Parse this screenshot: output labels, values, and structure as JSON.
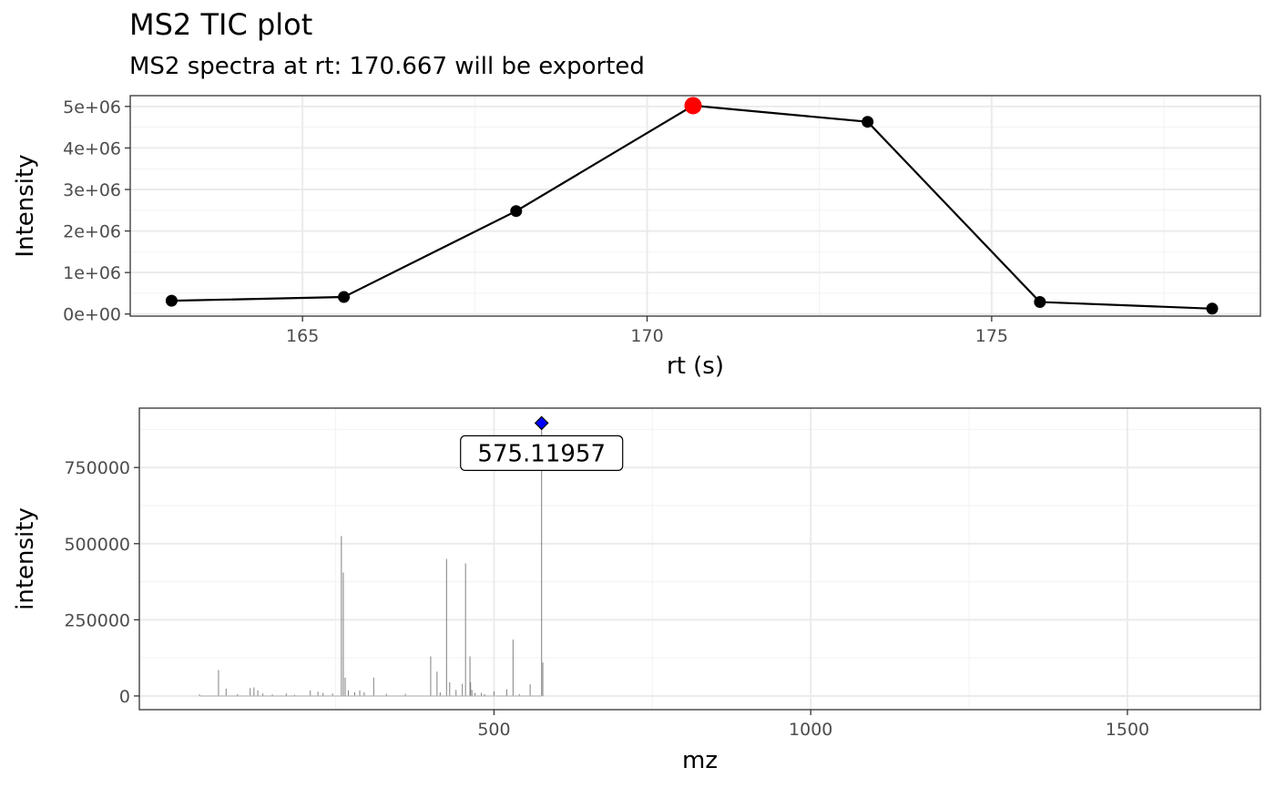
{
  "title": "MS2 TIC plot",
  "subtitle": "MS2 spectra at rt: 170.667 will be exported",
  "chart_data": [
    {
      "type": "line",
      "xlabel": "rt (s)",
      "ylabel": "Intensity",
      "xlim": [
        162.5,
        178.9
      ],
      "ylim": [
        -50000,
        5260000
      ],
      "xticks": [
        165,
        170,
        175
      ],
      "xtick_labels": [
        "165",
        "170",
        "175"
      ],
      "yticks": [
        0,
        1000000,
        2000000,
        3000000,
        4000000,
        5000000
      ],
      "ytick_labels": [
        "0e+00",
        "1e+06",
        "2e+06",
        "3e+06",
        "4e+06",
        "5e+06"
      ],
      "grid": true,
      "series": [
        {
          "x": [
            163.1,
            165.6,
            168.1,
            170.667,
            173.2,
            175.7,
            178.2
          ],
          "y": [
            320000,
            410000,
            2480000,
            5020000,
            4630000,
            290000,
            130000
          ],
          "color": "#000000"
        }
      ],
      "highlight": {
        "x": 170.667,
        "y": 5020000,
        "color": "#ff0000"
      }
    },
    {
      "type": "bar",
      "xlabel": "mz",
      "ylabel": "intensity",
      "xlim": [
        -60,
        1710
      ],
      "ylim": [
        -45000,
        945000
      ],
      "xticks": [
        500,
        1000,
        1500
      ],
      "xtick_labels": [
        "500",
        "1000",
        "1500"
      ],
      "yticks": [
        0,
        250000,
        500000,
        750000
      ],
      "ytick_labels": [
        "0",
        "250000",
        "500000",
        "750000"
      ],
      "grid": true,
      "bar_color": "#808080",
      "peaks": {
        "mz": [
          35,
          65,
          77,
          95,
          115,
          121,
          127,
          135,
          150,
          172,
          185,
          210,
          222,
          230,
          245,
          259,
          262,
          265,
          270,
          280,
          288,
          295,
          310,
          330,
          360,
          400,
          410,
          415,
          425,
          430,
          440,
          450,
          455,
          462,
          463,
          465,
          470,
          480,
          485,
          500,
          520,
          530,
          540,
          557,
          575.11957,
          577
        ],
        "intensity": [
          5000,
          85000,
          24000,
          6000,
          26000,
          28000,
          18000,
          8000,
          5000,
          8000,
          4000,
          18000,
          14000,
          10000,
          8000,
          525000,
          405000,
          60000,
          18000,
          12000,
          18000,
          12000,
          60000,
          7000,
          7000,
          130000,
          80000,
          12000,
          450000,
          45000,
          20000,
          40000,
          435000,
          130000,
          45000,
          20000,
          10000,
          10000,
          6000,
          15000,
          22000,
          185000,
          6000,
          38000,
          896000,
          110000
        ]
      },
      "highlight": {
        "mz": 575.11957,
        "intensity": 896000,
        "label": "575.11957",
        "color": "#0000ff"
      }
    }
  ]
}
